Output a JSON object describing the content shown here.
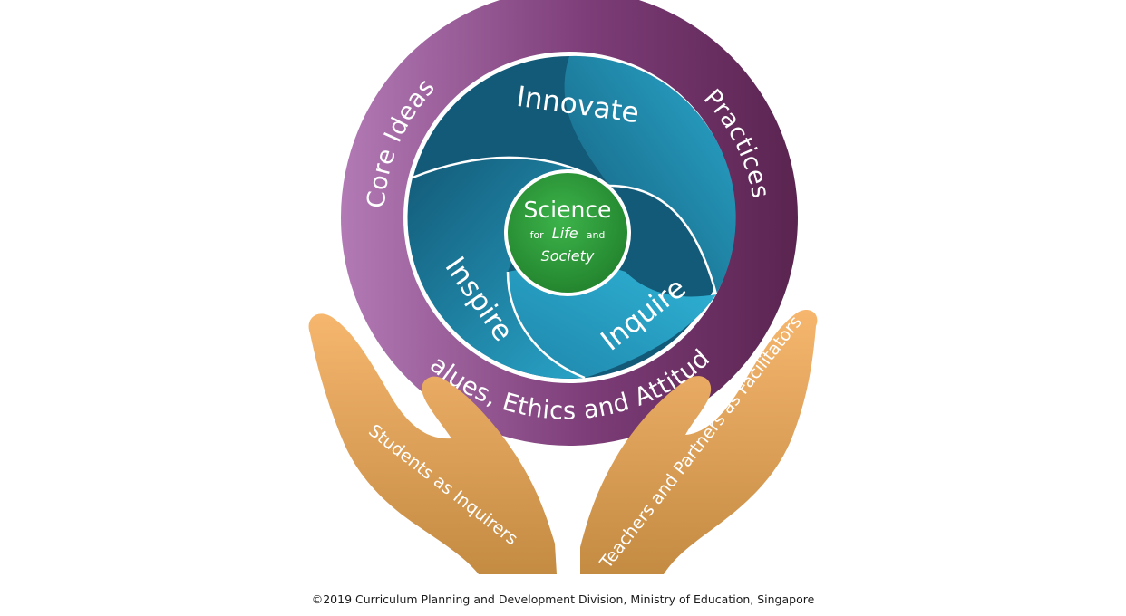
{
  "diagram": {
    "center": {
      "title": "Science",
      "for_word": "for",
      "life_word": "Life",
      "and_word": "and",
      "society_word": "Society"
    },
    "swirls": {
      "innovate": "Innovate",
      "inspire": "Inspire",
      "inquire": "Inquire"
    },
    "ring": {
      "core_ideas": "Core Ideas",
      "practices": "Practices",
      "values": "Values, Ethics and Attitudes"
    },
    "hands": {
      "left": "Students as Inquirers",
      "right": "Teachers and Partners as Facilitators"
    },
    "copyright": "©2019 Curriculum Planning and Development Division, Ministry of Education, Singapore"
  },
  "colors": {
    "ring_light": "#b27ab5",
    "ring_dark": "#5a2450",
    "swirl_light": "#2aa8cc",
    "swirl_dark": "#135a78",
    "center_green": "#2e9b3c",
    "hand_light": "#f3b26a",
    "hand_dark": "#c48b43"
  }
}
